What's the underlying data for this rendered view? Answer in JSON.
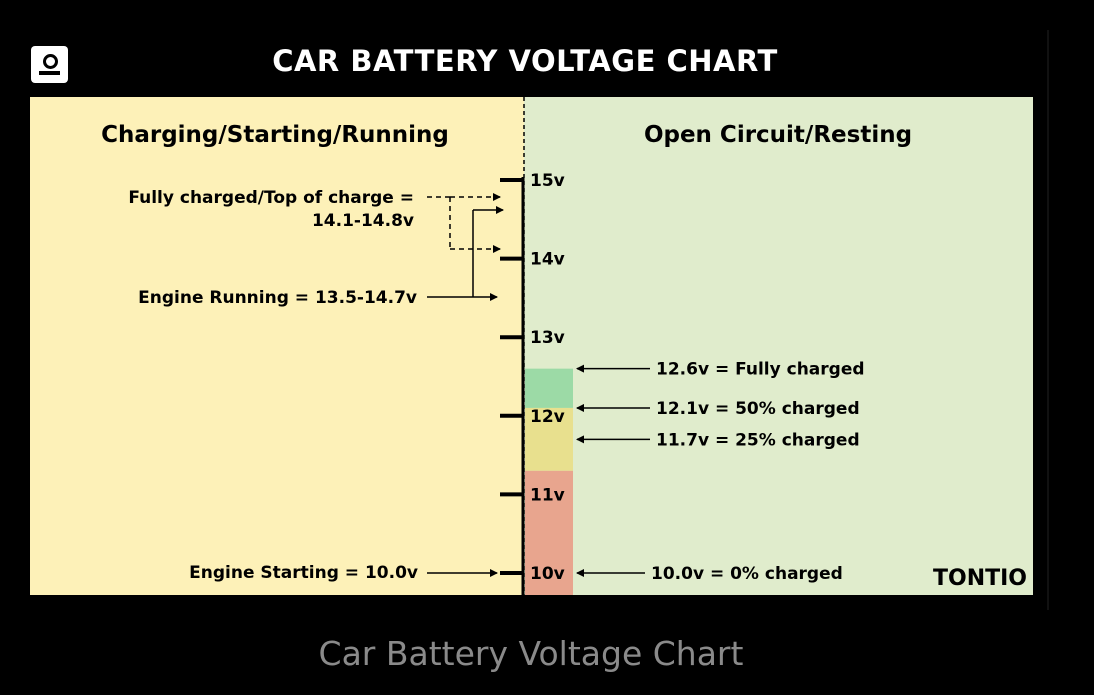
{
  "title": "CAR BATTERY VOLTAGE CHART",
  "caption": "Car Battery Voltage Chart",
  "brand": "TONTIO",
  "colors": {
    "background": "#000000",
    "left_panel": "#fdf1b8",
    "right_panel": "#e0eccc",
    "band_full": "#9cdaa6",
    "band_mid": "#e8e08e",
    "band_low": "#e8a58e"
  },
  "left_heading": "Charging/Starting/Running",
  "right_heading": "Open Circuit/Resting",
  "scale": {
    "ticks": [
      "15v",
      "14v",
      "13v",
      "12v",
      "11v",
      "10v"
    ],
    "values": [
      15,
      14,
      13,
      12,
      11,
      10
    ]
  },
  "left_labels": {
    "fully_charged_line1": "Fully charged/Top of charge =",
    "fully_charged_line2": "14.1-14.8v",
    "engine_running": "Engine Running = 13.5-14.7v",
    "engine_starting": "Engine Starting = 10.0v"
  },
  "right_labels": [
    {
      "voltage": 12.6,
      "text": "12.6v = Fully charged"
    },
    {
      "voltage": 12.1,
      "text": "12.1v = 50% charged"
    },
    {
      "voltage": 11.7,
      "text": "11.7v = 25% charged"
    },
    {
      "voltage": 10.0,
      "text": "10.0v = 0% charged"
    }
  ],
  "ranges": {
    "top_of_charge": [
      14.1,
      14.8
    ],
    "engine_running": [
      13.5,
      14.7
    ],
    "engine_starting": 10.0
  },
  "bands": [
    {
      "name": "full",
      "from": 12.6,
      "to": 12.1
    },
    {
      "name": "mid",
      "from": 12.1,
      "to": 11.3
    },
    {
      "name": "low",
      "from": 11.3,
      "to": 9.7
    }
  ]
}
